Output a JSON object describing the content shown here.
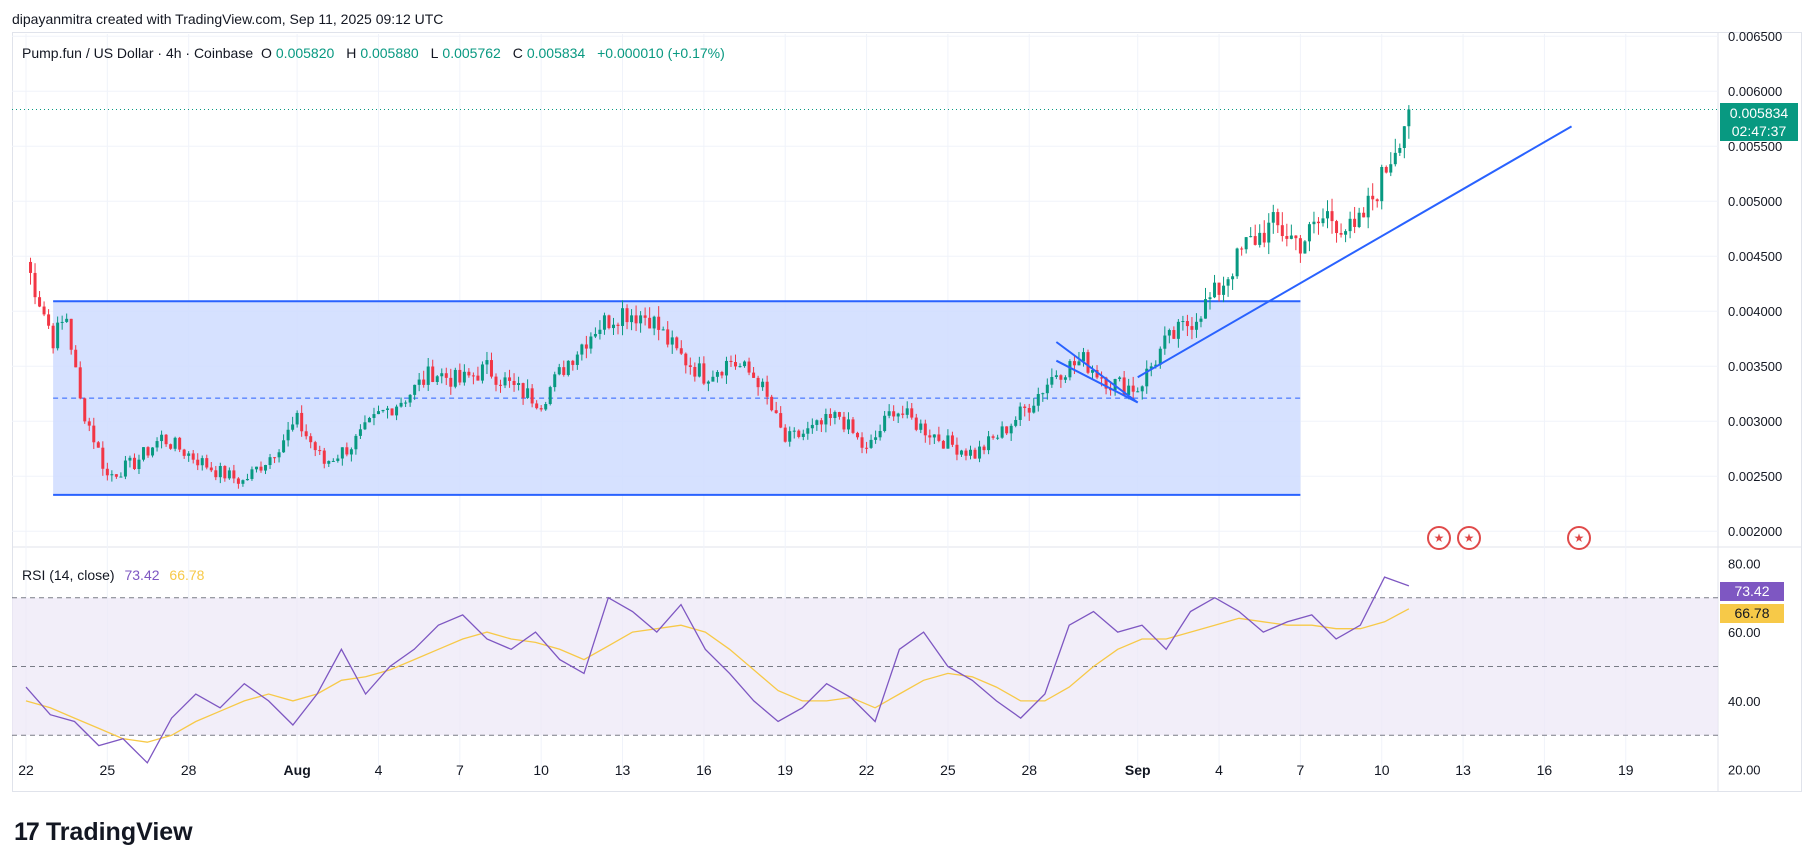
{
  "credit": "dipayanmitra created with TradingView.com, Sep 11, 2025 09:12 UTC",
  "header": {
    "symbol": "Pump.fun / US Dollar · 4h · Coinbase",
    "o_label": "O",
    "o": "0.005820",
    "h_label": "H",
    "h": "0.005880",
    "l_label": "L",
    "l": "0.005762",
    "c_label": "C",
    "c": "0.005834",
    "change": "+0.000010 (+0.17%)"
  },
  "price_tag": {
    "price": "0.005834",
    "countdown": "02:47:37"
  },
  "rsi": {
    "name": "RSI (14, close)",
    "value": "73.42",
    "ma": "66.78"
  },
  "logo": {
    "mark": "17",
    "text": "TradingView"
  },
  "event_icon": "us-flag-icon",
  "colors": {
    "up": "#089981",
    "down": "#f23645",
    "drawing": "#2962ff",
    "range_fill": "#cfdcff",
    "rsi": "#7e57c2",
    "rsi_ma": "#f7c948",
    "rsi_band": "#ede7f6"
  },
  "chart_data": [
    {
      "type": "candlestick",
      "title": "Pump.fun / US Dollar · 4h · Coinbase",
      "x_ticks": [
        "22",
        "25",
        "28",
        "Aug",
        "4",
        "7",
        "10",
        "13",
        "16",
        "19",
        "22",
        "25",
        "28",
        "Sep",
        "4",
        "7",
        "10",
        "13",
        "16",
        "19"
      ],
      "y_ticks": [
        "0.006500",
        "0.006000",
        "0.005500",
        "0.005000",
        "0.004500",
        "0.004000",
        "0.003500",
        "0.003000",
        "0.002500",
        "0.002000"
      ],
      "ylim": [
        0.00192,
        0.00652
      ],
      "x_range": [
        "2025-07-22",
        "2025-09-21"
      ],
      "last_price": 0.005834,
      "series_close": [
        [
          "2025-07-22",
          0.00445
        ],
        [
          "2025-07-23",
          0.00375
        ],
        [
          "2025-07-23T12",
          0.00395
        ],
        [
          "2025-07-24",
          0.00318
        ],
        [
          "2025-07-24T12",
          0.00285
        ],
        [
          "2025-07-25",
          0.0025
        ],
        [
          "2025-07-26",
          0.00262
        ],
        [
          "2025-07-27",
          0.00285
        ],
        [
          "2025-07-28",
          0.0027
        ],
        [
          "2025-07-29",
          0.00255
        ],
        [
          "2025-07-30",
          0.00245
        ],
        [
          "2025-07-31",
          0.00268
        ],
        [
          "2025-08-01",
          0.003
        ],
        [
          "2025-08-02",
          0.00262
        ],
        [
          "2025-08-03",
          0.00278
        ],
        [
          "2025-08-04",
          0.00305
        ],
        [
          "2025-08-05",
          0.00322
        ],
        [
          "2025-08-06",
          0.00345
        ],
        [
          "2025-08-07",
          0.00336
        ],
        [
          "2025-08-08",
          0.00348
        ],
        [
          "2025-08-09",
          0.0033
        ],
        [
          "2025-08-10",
          0.00318
        ],
        [
          "2025-08-11",
          0.00355
        ],
        [
          "2025-08-12",
          0.00385
        ],
        [
          "2025-08-13",
          0.004
        ],
        [
          "2025-08-14",
          0.00395
        ],
        [
          "2025-08-15",
          0.00362
        ],
        [
          "2025-08-16",
          0.00342
        ],
        [
          "2025-08-17",
          0.00355
        ],
        [
          "2025-08-18",
          0.00338
        ],
        [
          "2025-08-19",
          0.00282
        ],
        [
          "2025-08-20",
          0.00292
        ],
        [
          "2025-08-21",
          0.00305
        ],
        [
          "2025-08-22",
          0.00272
        ],
        [
          "2025-08-23",
          0.00312
        ],
        [
          "2025-08-24",
          0.00295
        ],
        [
          "2025-08-25",
          0.0028
        ],
        [
          "2025-08-26",
          0.0027
        ],
        [
          "2025-08-27",
          0.0029
        ],
        [
          "2025-08-28",
          0.00315
        ],
        [
          "2025-08-29",
          0.00345
        ],
        [
          "2025-08-30",
          0.00355
        ],
        [
          "2025-08-31",
          0.00335
        ],
        [
          "2025-09-01",
          0.0033
        ],
        [
          "2025-09-02",
          0.0037
        ],
        [
          "2025-09-03",
          0.00392
        ],
        [
          "2025-09-04",
          0.0042
        ],
        [
          "2025-09-05",
          0.0046
        ],
        [
          "2025-09-06",
          0.00478
        ],
        [
          "2025-09-07",
          0.00462
        ],
        [
          "2025-09-08",
          0.00488
        ],
        [
          "2025-09-09",
          0.0047
        ],
        [
          "2025-09-10",
          0.0052
        ],
        [
          "2025-09-11",
          0.005834
        ]
      ],
      "drawings": {
        "range_box": {
          "from": "2025-07-23",
          "to": "2025-09-07",
          "top": 0.00409,
          "bottom": 0.00233,
          "midline": 0.00321
        },
        "trendline": {
          "from": [
            "2025-09-01",
            0.0034
          ],
          "to": [
            "2025-09-17",
            0.00568
          ]
        },
        "wedge": [
          [
            "2025-08-29",
            0.00372
          ],
          [
            "2025-09-01",
            0.00317
          ],
          [
            "2025-08-29",
            0.00355
          ]
        ]
      }
    },
    {
      "type": "line",
      "title": "RSI (14, close)",
      "y_ticks": [
        "80.00",
        "60.00",
        "40.00",
        "20.00"
      ],
      "ylim": [
        17,
        83
      ],
      "bands": [
        70,
        50,
        30
      ],
      "series": [
        {
          "name": "RSI",
          "values": [
            44,
            36,
            34,
            27,
            29,
            22,
            35,
            42,
            38,
            45,
            40,
            33,
            42,
            55,
            42,
            50,
            55,
            62,
            65,
            58,
            55,
            60,
            52,
            48,
            70,
            66,
            60,
            68,
            55,
            48,
            40,
            34,
            38,
            45,
            41,
            34,
            55,
            60,
            50,
            46,
            40,
            35,
            42,
            62,
            66,
            60,
            62,
            55,
            66,
            70,
            66,
            60,
            63,
            65,
            58,
            62,
            76,
            73.42
          ]
        },
        {
          "name": "RSI MA",
          "values": [
            40,
            38,
            35,
            32,
            29,
            28,
            30,
            34,
            37,
            40,
            42,
            40,
            42,
            46,
            47,
            49,
            52,
            55,
            58,
            60,
            58,
            57,
            55,
            52,
            56,
            60,
            61,
            62,
            60,
            55,
            49,
            43,
            40,
            40,
            41,
            38,
            42,
            46,
            48,
            47,
            44,
            40,
            40,
            44,
            50,
            55,
            58,
            58,
            60,
            62,
            64,
            63,
            62,
            62,
            61,
            61,
            63,
            66.78
          ]
        }
      ]
    }
  ]
}
